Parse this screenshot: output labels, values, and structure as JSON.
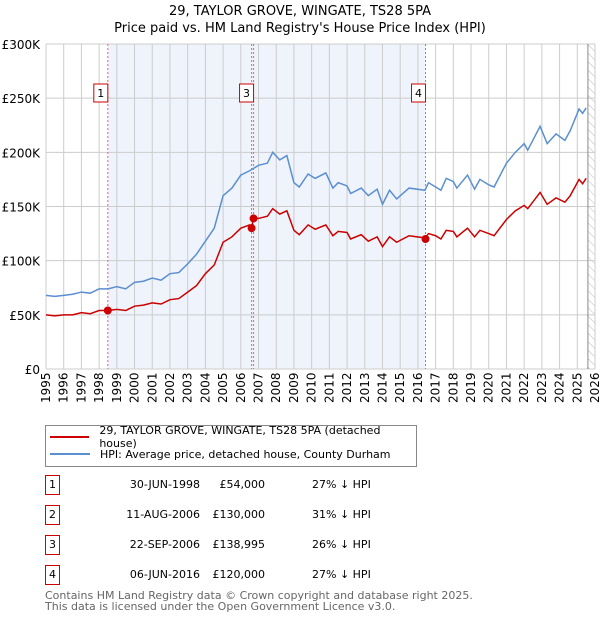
{
  "title": "29, TAYLOR GROVE, WINGATE, TS28 5PA",
  "subtitle": "Price paid vs. HM Land Registry's House Price Index (HPI)",
  "chart_data": {
    "type": "line",
    "title": "29, TAYLOR GROVE, WINGATE, TS28 5PA",
    "subtitle": "Price paid vs. HM Land Registry's House Price Index (HPI)",
    "xlim": [
      1995,
      2026
    ],
    "ylim": [
      0,
      300000
    ],
    "yticks": [
      0,
      50000,
      100000,
      150000,
      200000,
      250000,
      300000
    ],
    "ytick_labels": [
      "£0",
      "£50K",
      "£100K",
      "£150K",
      "£200K",
      "£250K",
      "£300K"
    ],
    "xticks": [
      "1995",
      "1996",
      "1997",
      "1998",
      "1999",
      "2000",
      "2001",
      "2002",
      "2003",
      "2004",
      "2005",
      "2006",
      "2007",
      "2008",
      "2009",
      "2010",
      "2011",
      "2012",
      "2013",
      "2014",
      "2015",
      "2016",
      "2017",
      "2018",
      "2019",
      "2020",
      "2021",
      "2022",
      "2023",
      "2024",
      "2025",
      "2026"
    ],
    "grid": true,
    "colors": {
      "property": "#cc0000",
      "hpi": "#5b8fd0",
      "shade": "#eef3fc"
    },
    "series": [
      {
        "name": "29, TAYLOR GROVE, WINGATE, TS28 5PA (detached house)",
        "points": [
          [
            1995,
            50
          ],
          [
            1995.5,
            49
          ],
          [
            1996,
            50
          ],
          [
            1996.5,
            50
          ],
          [
            1997,
            52
          ],
          [
            1997.5,
            51
          ],
          [
            1998,
            54
          ],
          [
            1998.5,
            54
          ],
          [
            1999,
            55
          ],
          [
            1999.5,
            54
          ],
          [
            2000,
            58
          ],
          [
            2000.5,
            59
          ],
          [
            2001,
            61
          ],
          [
            2001.5,
            60
          ],
          [
            2002,
            64
          ],
          [
            2002.5,
            65
          ],
          [
            2003,
            71
          ],
          [
            2003.5,
            77
          ],
          [
            2004,
            88
          ],
          [
            2004.5,
            96
          ],
          [
            2005,
            117
          ],
          [
            2005.5,
            122
          ],
          [
            2006,
            130
          ],
          [
            2006.5,
            133
          ],
          [
            2006.6,
            130
          ],
          [
            2006.72,
            139
          ],
          [
            2007,
            139
          ],
          [
            2007.5,
            141
          ],
          [
            2007.8,
            148
          ],
          [
            2008.2,
            143
          ],
          [
            2008.6,
            146
          ],
          [
            2009,
            128
          ],
          [
            2009.3,
            124
          ],
          [
            2009.8,
            133
          ],
          [
            2010.2,
            129
          ],
          [
            2010.8,
            133
          ],
          [
            2011.2,
            123
          ],
          [
            2011.5,
            127
          ],
          [
            2012,
            126
          ],
          [
            2012.2,
            120
          ],
          [
            2012.8,
            124
          ],
          [
            2013.2,
            118
          ],
          [
            2013.7,
            122
          ],
          [
            2014,
            113
          ],
          [
            2014.4,
            122
          ],
          [
            2014.8,
            117
          ],
          [
            2015.5,
            123
          ],
          [
            2016.4,
            121
          ],
          [
            2016.6,
            125
          ],
          [
            2017,
            123
          ],
          [
            2017.3,
            120
          ],
          [
            2017.6,
            128
          ],
          [
            2018,
            127
          ],
          [
            2018.2,
            122
          ],
          [
            2018.8,
            130
          ],
          [
            2019.2,
            122
          ],
          [
            2019.5,
            128
          ],
          [
            2020,
            125
          ],
          [
            2020.3,
            123
          ],
          [
            2021,
            138
          ],
          [
            2021.5,
            146
          ],
          [
            2022,
            151
          ],
          [
            2022.2,
            148
          ],
          [
            2022.9,
            163
          ],
          [
            2023.3,
            152
          ],
          [
            2023.8,
            158
          ],
          [
            2024.3,
            154
          ],
          [
            2024.6,
            160
          ],
          [
            2025.1,
            175
          ],
          [
            2025.3,
            171
          ],
          [
            2025.5,
            176
          ]
        ]
      },
      {
        "name": "HPI: Average price, detached house, County Durham",
        "points": [
          [
            1995,
            68
          ],
          [
            1995.5,
            67
          ],
          [
            1996,
            68
          ],
          [
            1996.5,
            69
          ],
          [
            1997,
            71
          ],
          [
            1997.5,
            70
          ],
          [
            1998,
            74
          ],
          [
            1998.5,
            74
          ],
          [
            1999,
            76
          ],
          [
            1999.5,
            74
          ],
          [
            2000,
            80
          ],
          [
            2000.5,
            81
          ],
          [
            2001,
            84
          ],
          [
            2001.5,
            82
          ],
          [
            2002,
            88
          ],
          [
            2002.5,
            89
          ],
          [
            2003,
            97
          ],
          [
            2003.5,
            106
          ],
          [
            2004,
            118
          ],
          [
            2004.5,
            130
          ],
          [
            2005,
            160
          ],
          [
            2005.5,
            167
          ],
          [
            2006,
            179
          ],
          [
            2006.5,
            183
          ],
          [
            2007,
            188
          ],
          [
            2007.5,
            190
          ],
          [
            2007.8,
            200
          ],
          [
            2008.2,
            193
          ],
          [
            2008.6,
            197
          ],
          [
            2009,
            172
          ],
          [
            2009.3,
            168
          ],
          [
            2009.8,
            180
          ],
          [
            2010.2,
            176
          ],
          [
            2010.8,
            181
          ],
          [
            2011.2,
            167
          ],
          [
            2011.5,
            172
          ],
          [
            2012,
            169
          ],
          [
            2012.2,
            162
          ],
          [
            2012.8,
            167
          ],
          [
            2013.2,
            160
          ],
          [
            2013.7,
            166
          ],
          [
            2014,
            152
          ],
          [
            2014.4,
            165
          ],
          [
            2014.8,
            157
          ],
          [
            2015.5,
            167
          ],
          [
            2016.4,
            165
          ],
          [
            2016.6,
            172
          ],
          [
            2017,
            168
          ],
          [
            2017.3,
            165
          ],
          [
            2017.6,
            176
          ],
          [
            2018,
            173
          ],
          [
            2018.2,
            167
          ],
          [
            2018.8,
            179
          ],
          [
            2019.2,
            166
          ],
          [
            2019.5,
            175
          ],
          [
            2020,
            170
          ],
          [
            2020.3,
            168
          ],
          [
            2021,
            190
          ],
          [
            2021.5,
            200
          ],
          [
            2022,
            208
          ],
          [
            2022.2,
            202
          ],
          [
            2022.9,
            224
          ],
          [
            2023.3,
            208
          ],
          [
            2023.8,
            217
          ],
          [
            2024.3,
            211
          ],
          [
            2024.6,
            220
          ],
          [
            2025.1,
            240
          ],
          [
            2025.3,
            236
          ],
          [
            2025.5,
            241
          ]
        ]
      }
    ],
    "sales": [
      {
        "id": "1",
        "year": 1998.49,
        "price": 54000
      },
      {
        "id": "2",
        "year": 2006.61,
        "price": 130000
      },
      {
        "id": "3",
        "year": 2006.72,
        "price": 138995
      },
      {
        "id": "4",
        "year": 2016.43,
        "price": 120000
      }
    ],
    "shaded_range": [
      1998.49,
      2016.43
    ],
    "hatched_from": 2025.6
  },
  "legend": {
    "property": "29, TAYLOR GROVE, WINGATE, TS28 5PA (detached house)",
    "hpi": "HPI: Average price, detached house, County Durham"
  },
  "sales_table": [
    {
      "num": "1",
      "date": "30-JUN-1998",
      "price": "£54,000",
      "hpi": "27% ↓ HPI"
    },
    {
      "num": "2",
      "date": "11-AUG-2006",
      "price": "£130,000",
      "hpi": "31% ↓ HPI"
    },
    {
      "num": "3",
      "date": "22-SEP-2006",
      "price": "£138,995",
      "hpi": "26% ↓ HPI"
    },
    {
      "num": "4",
      "date": "06-JUN-2016",
      "price": "£120,000",
      "hpi": "27% ↓ HPI"
    }
  ],
  "footer": {
    "line1": "Contains HM Land Registry data © Crown copyright and database right 2025.",
    "line2": "This data is licensed under the Open Government Licence v3.0."
  }
}
